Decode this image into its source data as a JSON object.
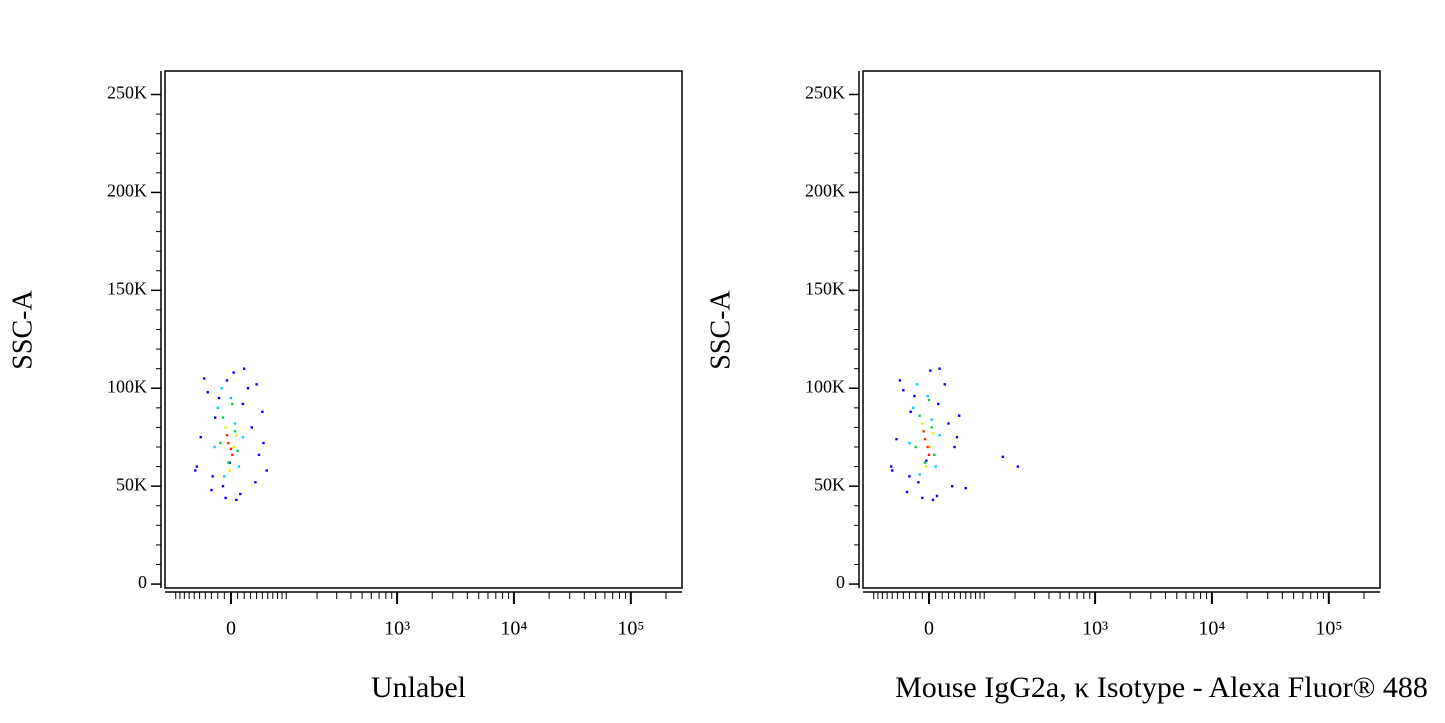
{
  "chart_data": [
    {
      "type": "scatter",
      "xlabel": "Unlabel",
      "ylabel": "SSC-A",
      "xscale": "biexponential",
      "xlim": [
        -129,
        274000
      ],
      "ylim": [
        -2000,
        262000
      ],
      "xticks": [
        0,
        {
          "value": 1000,
          "label": "10³"
        },
        {
          "value": 10000,
          "label": "10⁴"
        },
        {
          "value": 100000,
          "label": "10⁵"
        }
      ],
      "yticks": [
        {
          "value": 0,
          "label": "0"
        },
        {
          "value": 50000,
          "label": "50K"
        },
        {
          "value": 100000,
          "label": "100K"
        },
        {
          "value": 150000,
          "label": "150K"
        },
        {
          "value": 200000,
          "label": "200K"
        },
        {
          "value": 250000,
          "label": "250K"
        }
      ],
      "xminorticks": [
        -100,
        -90,
        -80,
        -70,
        -60,
        -50,
        -40,
        -30,
        -20,
        -10,
        10,
        20,
        30,
        40,
        50,
        60,
        70,
        80,
        90,
        100,
        200,
        300,
        400,
        500,
        600,
        700,
        800,
        900,
        2000,
        3000,
        4000,
        5000,
        6000,
        7000,
        8000,
        9000,
        20000,
        30000,
        40000,
        50000,
        60000,
        70000,
        80000,
        90000,
        200000
      ],
      "yminorticks": [
        10000,
        20000,
        30000,
        40000,
        60000,
        70000,
        80000,
        90000,
        110000,
        120000,
        130000,
        140000,
        160000,
        170000,
        180000,
        190000,
        210000,
        220000,
        230000,
        240000
      ],
      "series": [
        {
          "color": "#0000ff",
          "x": [
            -55,
            -42,
            -30,
            -18,
            -8,
            4,
            14,
            26,
            38,
            50,
            -48,
            -24,
            -2,
            20,
            44,
            58,
            -36,
            8,
            32,
            -12,
            -58,
            52,
            -28,
            18,
            40,
            -6
          ],
          "y": [
            60000,
            105000,
            48000,
            95000,
            44000,
            108000,
            46000,
            100000,
            52000,
            88000,
            75000,
            85000,
            62000,
            110000,
            66000,
            58000,
            98000,
            43000,
            80000,
            50000,
            58000,
            72000,
            55000,
            92000,
            102000,
            104000
          ]
        },
        {
          "color": "#00c8ff",
          "x": [
            -20,
            -10,
            0,
            12,
            -25,
            6,
            18,
            -14
          ],
          "y": [
            90000,
            55000,
            95000,
            60000,
            70000,
            82000,
            75000,
            100000
          ]
        },
        {
          "color": "#00d040",
          "x": [
            -12,
            -4,
            6,
            -16,
            10,
            2
          ],
          "y": [
            85000,
            62000,
            78000,
            72000,
            68000,
            92000
          ]
        },
        {
          "color": "#e8e800",
          "x": [
            -8,
            4,
            -2,
            8
          ],
          "y": [
            80000,
            70000,
            58000,
            76000
          ]
        },
        {
          "color": "#ff2000",
          "x": [
            -4,
            2,
            -6,
            0
          ],
          "y": [
            72000,
            66000,
            76000,
            69000
          ]
        }
      ]
    },
    {
      "type": "scatter",
      "xlabel": "Mouse IgG2a, κ Isotype - Alexa Fluor® 488",
      "ylabel": "SSC-A",
      "xscale": "biexponential",
      "xlim": [
        -129,
        274000
      ],
      "ylim": [
        -2000,
        262000
      ],
      "xticks": [
        0,
        {
          "value": 1000,
          "label": "10³"
        },
        {
          "value": 10000,
          "label": "10⁴"
        },
        {
          "value": 100000,
          "label": "10⁵"
        }
      ],
      "yticks": [
        {
          "value": 0,
          "label": "0"
        },
        {
          "value": 50000,
          "label": "50K"
        },
        {
          "value": 100000,
          "label": "100K"
        },
        {
          "value": 150000,
          "label": "150K"
        },
        {
          "value": 200000,
          "label": "200K"
        },
        {
          "value": 250000,
          "label": "250K"
        }
      ],
      "xminorticks": [
        -100,
        -90,
        -80,
        -70,
        -60,
        -50,
        -40,
        -30,
        -20,
        -10,
        10,
        20,
        30,
        40,
        50,
        60,
        70,
        80,
        90,
        100,
        200,
        300,
        400,
        500,
        600,
        700,
        800,
        900,
        2000,
        3000,
        4000,
        5000,
        6000,
        7000,
        8000,
        9000,
        20000,
        30000,
        40000,
        50000,
        60000,
        70000,
        80000,
        90000,
        200000
      ],
      "yminorticks": [
        10000,
        20000,
        30000,
        40000,
        60000,
        70000,
        80000,
        90000,
        110000,
        120000,
        130000,
        140000,
        160000,
        170000,
        180000,
        190000,
        210000,
        220000,
        230000,
        240000
      ],
      "series": [
        {
          "color": "#0000ff",
          "x": [
            -60,
            -46,
            -34,
            -22,
            -10,
            2,
            12,
            24,
            36,
            48,
            -52,
            -28,
            -4,
            16,
            40,
            60,
            -40,
            6,
            30,
            -16,
            -62,
            154,
            212,
            -30,
            14,
            44
          ],
          "y": [
            58000,
            104000,
            47000,
            96000,
            44000,
            109000,
            45000,
            102000,
            50000,
            86000,
            74000,
            88000,
            63000,
            110000,
            70000,
            49000,
            99000,
            43000,
            82000,
            52000,
            60000,
            65000,
            60000,
            55000,
            92000,
            75000
          ]
        },
        {
          "color": "#00c8ff",
          "x": [
            -24,
            -14,
            -2,
            10,
            -30,
            4,
            16,
            -18
          ],
          "y": [
            90000,
            56000,
            96000,
            60000,
            72000,
            84000,
            76000,
            102000
          ]
        },
        {
          "color": "#00d040",
          "x": [
            -14,
            -6,
            4,
            -20,
            8,
            0
          ],
          "y": [
            86000,
            62000,
            80000,
            70000,
            66000,
            94000
          ]
        },
        {
          "color": "#e8e800",
          "x": [
            -10,
            2,
            -4,
            6
          ],
          "y": [
            82000,
            70000,
            60000,
            77000
          ]
        },
        {
          "color": "#ff2000",
          "x": [
            -6,
            0,
            -8,
            -2
          ],
          "y": [
            74000,
            66000,
            78000,
            70000
          ]
        }
      ]
    }
  ]
}
